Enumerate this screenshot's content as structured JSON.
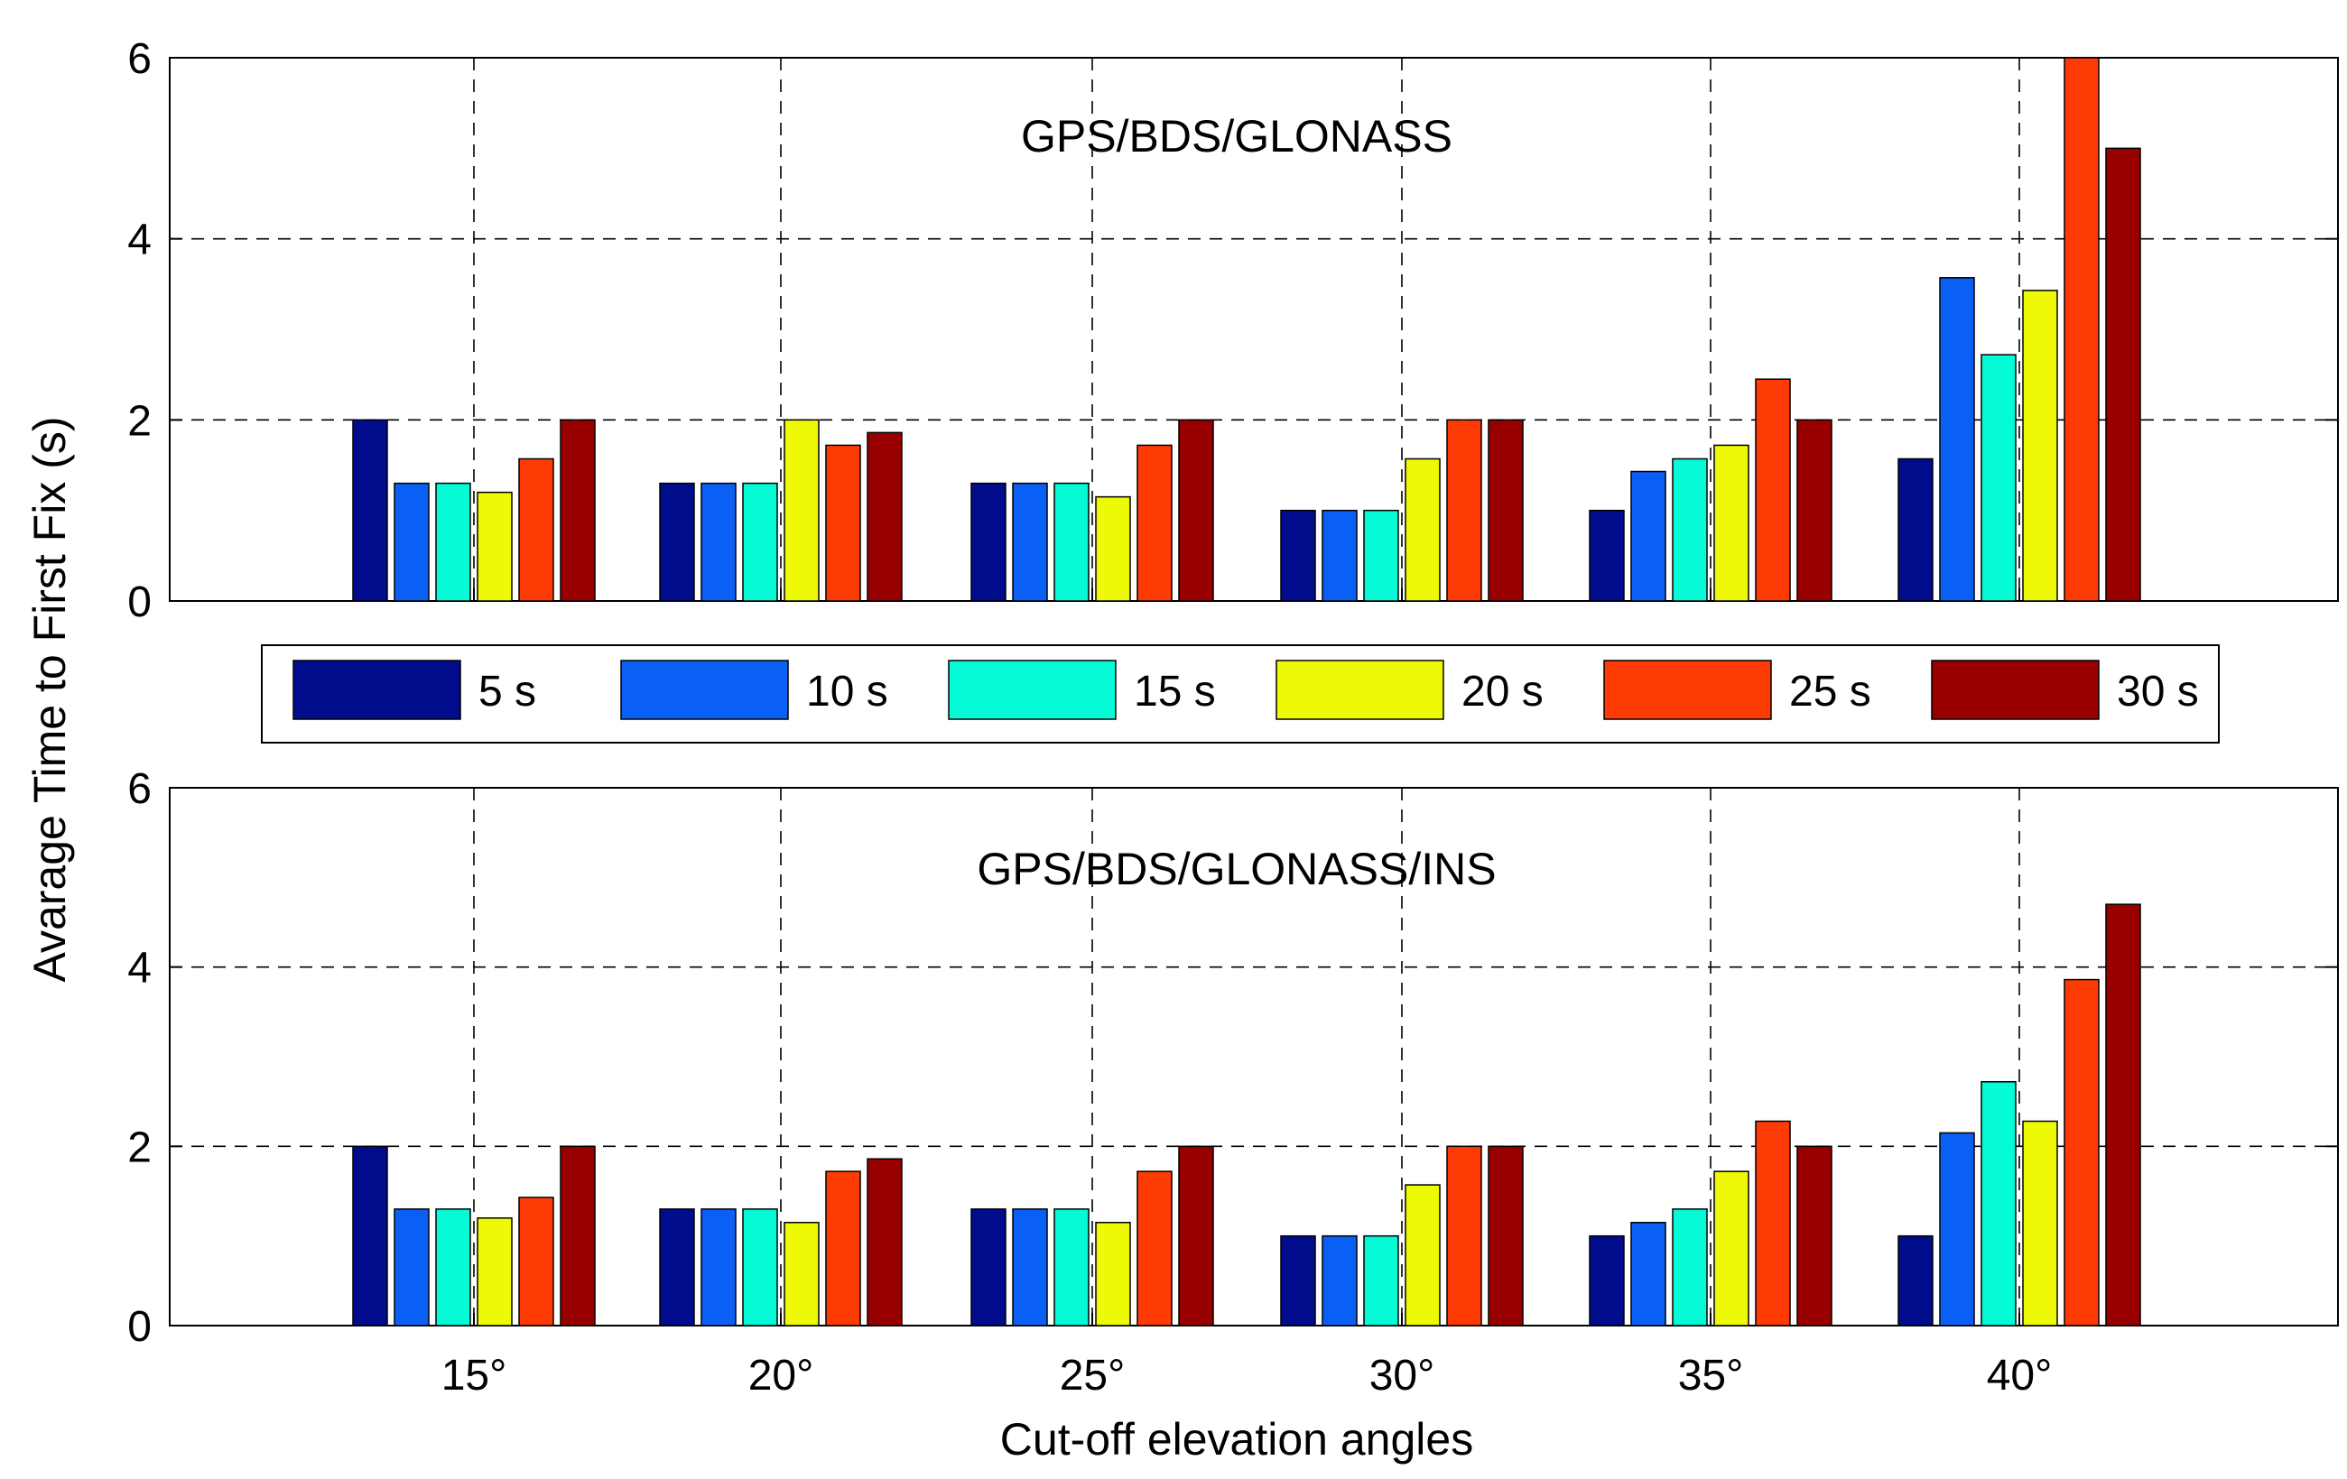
{
  "chart_data": {
    "type": "bar",
    "categories": [
      "15°",
      "20°",
      "25°",
      "30°",
      "35°",
      "40°"
    ],
    "xlabel": "Cut-off elevation angles",
    "ylabel": "Avarage Time to First Fix (s)",
    "ylim": [
      0,
      6
    ],
    "yticks": [
      "0",
      "2",
      "4",
      "6"
    ],
    "grid": true,
    "colors": [
      "#000c8c",
      "#0a5ff5",
      "#05fad6",
      "#edf905",
      "#ff3b05",
      "#980000"
    ],
    "legend": {
      "placement": "between panels",
      "entries": [
        "5 s",
        "10 s",
        "15 s",
        "20 s",
        "25 s",
        "30 s"
      ]
    },
    "panels": [
      {
        "title": "GPS/BDS/GLONASS",
        "series": [
          {
            "name": "5 s",
            "values": [
              2,
              1.3,
              1.3,
              1.0,
              1.0,
              1.57
            ]
          },
          {
            "name": "10 s",
            "values": [
              1.3,
              1.3,
              1.3,
              1.0,
              1.43,
              3.57
            ]
          },
          {
            "name": "15 s",
            "values": [
              1.3,
              1.3,
              1.3,
              1.0,
              1.57,
              2.72
            ]
          },
          {
            "name": "20 s",
            "values": [
              1.2,
              2.0,
              1.15,
              1.57,
              1.72,
              3.43
            ]
          },
          {
            "name": "25 s",
            "values": [
              1.57,
              1.72,
              1.72,
              2.0,
              2.45,
              6.0
            ]
          },
          {
            "name": "30 s",
            "values": [
              2.0,
              1.86,
              2.0,
              2.0,
              2.0,
              5.0
            ]
          }
        ]
      },
      {
        "title": "GPS/BDS/GLONASS/INS",
        "series": [
          {
            "name": "5 s",
            "values": [
              2,
              1.3,
              1.3,
              1.0,
              1.0,
              1.0
            ]
          },
          {
            "name": "10 s",
            "values": [
              1.3,
              1.3,
              1.3,
              1.0,
              1.15,
              2.15
            ]
          },
          {
            "name": "15 s",
            "values": [
              1.3,
              1.3,
              1.3,
              1.0,
              1.3,
              2.72
            ]
          },
          {
            "name": "20 s",
            "values": [
              1.2,
              1.15,
              1.15,
              1.57,
              1.72,
              2.28
            ]
          },
          {
            "name": "25 s",
            "values": [
              1.43,
              1.72,
              1.72,
              2.0,
              2.28,
              3.86
            ]
          },
          {
            "name": "30 s",
            "values": [
              2.0,
              1.86,
              2.0,
              2.0,
              2.0,
              4.7
            ]
          }
        ]
      }
    ]
  }
}
